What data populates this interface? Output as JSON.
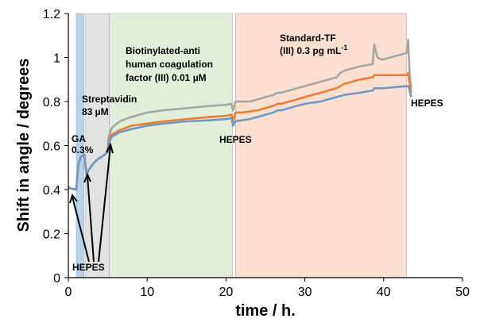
{
  "chart_data": {
    "type": "line",
    "xlabel": "time / h.",
    "ylabel": "Shift in angle / degrees",
    "xlim": [
      0,
      50
    ],
    "ylim": [
      0,
      1.2
    ],
    "x_ticks": [
      "0",
      "10",
      "20",
      "30",
      "40",
      "50"
    ],
    "y_ticks": [
      "0",
      "0.2",
      "0.4",
      "0.6",
      "0.8",
      "1",
      "1.2"
    ],
    "grid": false,
    "regions": [
      {
        "x0": 1.0,
        "x1": 2.0,
        "color": "#b7d3ea"
      },
      {
        "x0": 2.2,
        "x1": 5.2,
        "color": "#e2e2e2"
      },
      {
        "x0": 5.2,
        "x1": 20.8,
        "color": "#e2eed9"
      },
      {
        "x0": 21.2,
        "x1": 42.9,
        "color": "#fbdfd1"
      }
    ],
    "annotations": {
      "ga": [
        "GA",
        "0.3%"
      ],
      "streptavidin": [
        "Streptavidin",
        "83 µM"
      ],
      "biotin": [
        "Biotinylated-anti",
        "human coagulation",
        "factor (III) 0.01 µM"
      ],
      "standard_tf": [
        "Standard-TF",
        "(III) 0.3 pg mL"
      ],
      "standard_tf_sup": "-1",
      "hepes_bottom": "HEPES",
      "hepes_mid": "HEPES",
      "hepes_right": "HEPES"
    },
    "series": [
      {
        "color": "#a6a6a6",
        "x": [
          0,
          0.3,
          1.0,
          1.1,
          1.3,
          1.6,
          2.0,
          2.3,
          2.6,
          3.2,
          3.8,
          4.3,
          5.0,
          5.1,
          5.5,
          6.5,
          8,
          10,
          12,
          15,
          18,
          20,
          20.7,
          20.9,
          21.2,
          22,
          23,
          24,
          25,
          26,
          26.5,
          27,
          29,
          30,
          32,
          34,
          34.5,
          35,
          37,
          38.6,
          38.8,
          39.2,
          39.8,
          42.9,
          43.1,
          43.3,
          43.5
        ],
        "y": [
          0.41,
          0.405,
          0.4,
          0.44,
          0.52,
          0.55,
          0.56,
          0.47,
          0.49,
          0.52,
          0.54,
          0.55,
          0.57,
          0.64,
          0.68,
          0.71,
          0.73,
          0.75,
          0.76,
          0.77,
          0.78,
          0.785,
          0.79,
          0.76,
          0.8,
          0.8,
          0.8,
          0.81,
          0.82,
          0.83,
          0.84,
          0.84,
          0.86,
          0.87,
          0.89,
          0.91,
          0.93,
          0.94,
          0.96,
          0.97,
          1.06,
          1.0,
          0.99,
          1.02,
          1.08,
          0.92,
          0.86
        ]
      },
      {
        "color": "#ed7d31",
        "x": [
          0,
          0.3,
          1.0,
          1.1,
          1.3,
          1.6,
          2.0,
          2.3,
          2.6,
          3.2,
          3.8,
          4.3,
          5.0,
          5.1,
          5.5,
          6.5,
          8,
          10,
          12,
          15,
          18,
          20,
          20.7,
          20.9,
          21.2,
          22,
          23,
          24,
          25,
          26,
          26.5,
          27,
          29,
          30,
          32,
          34,
          34.5,
          35,
          37,
          38.6,
          38.8,
          39.2,
          39.8,
          42.9,
          43.1,
          43.3,
          43.5
        ],
        "y": [
          0.41,
          0.405,
          0.4,
          0.44,
          0.52,
          0.55,
          0.56,
          0.47,
          0.49,
          0.52,
          0.54,
          0.55,
          0.57,
          0.62,
          0.65,
          0.67,
          0.69,
          0.7,
          0.71,
          0.72,
          0.73,
          0.735,
          0.74,
          0.71,
          0.75,
          0.75,
          0.755,
          0.76,
          0.77,
          0.78,
          0.79,
          0.79,
          0.81,
          0.82,
          0.84,
          0.86,
          0.87,
          0.88,
          0.9,
          0.91,
          0.92,
          0.92,
          0.92,
          0.92,
          0.93,
          0.88,
          0.84
        ]
      },
      {
        "color": "#6f98c6",
        "x": [
          0,
          0.3,
          1.0,
          1.1,
          1.3,
          1.6,
          2.0,
          2.3,
          2.6,
          3.2,
          3.8,
          4.3,
          5.0,
          5.1,
          5.5,
          6.5,
          8,
          10,
          12,
          15,
          18,
          20,
          20.7,
          20.9,
          21.2,
          22,
          23,
          24,
          25,
          26,
          26.5,
          27,
          29,
          30,
          32,
          34,
          34.5,
          35,
          37,
          38.6,
          38.8,
          39.2,
          39.8,
          42.9,
          43.1,
          43.3,
          43.5
        ],
        "y": [
          0.41,
          0.405,
          0.4,
          0.44,
          0.52,
          0.55,
          0.56,
          0.47,
          0.49,
          0.52,
          0.54,
          0.55,
          0.57,
          0.61,
          0.64,
          0.66,
          0.675,
          0.69,
          0.7,
          0.71,
          0.715,
          0.72,
          0.725,
          0.69,
          0.71,
          0.715,
          0.72,
          0.73,
          0.74,
          0.75,
          0.76,
          0.76,
          0.78,
          0.79,
          0.8,
          0.82,
          0.825,
          0.83,
          0.84,
          0.85,
          0.86,
          0.86,
          0.86,
          0.87,
          0.87,
          0.85,
          0.82
        ]
      }
    ]
  }
}
